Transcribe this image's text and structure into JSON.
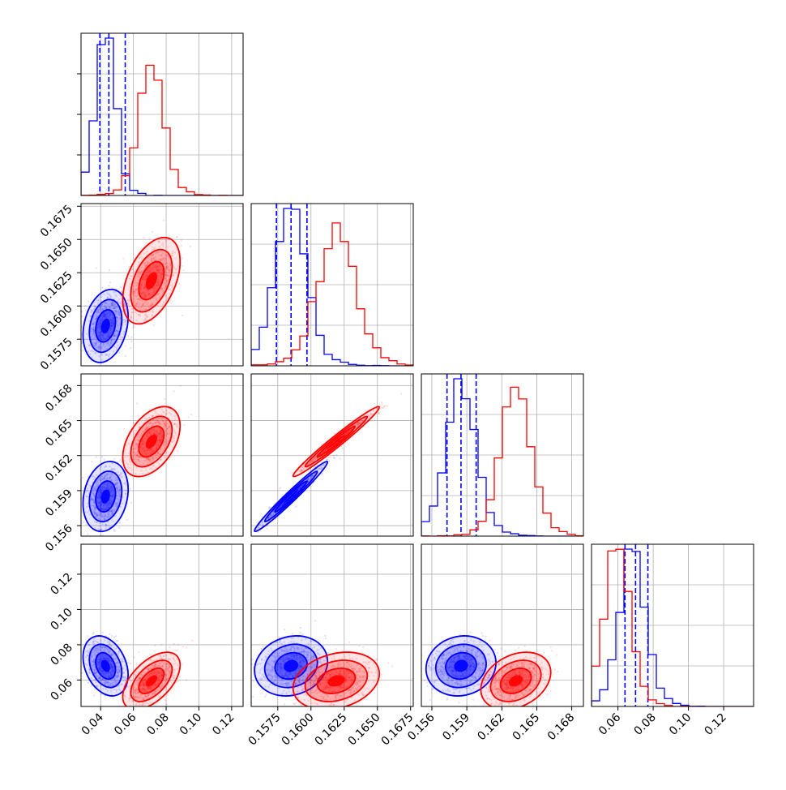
{
  "chart_data": {
    "type": "corner",
    "parameters": [
      {
        "ticks": [
          "0.04",
          "0.06",
          "0.08",
          "0.10",
          "0.12"
        ],
        "tick_values": [
          0.04,
          0.06,
          0.08,
          0.1,
          0.12
        ],
        "range": [
          0.028,
          0.127
        ]
      },
      {
        "ticks": [
          "0.1575",
          "0.1600",
          "0.1625",
          "0.1650",
          "0.1675"
        ],
        "tick_values": [
          0.1575,
          0.16,
          0.1625,
          0.165,
          0.1675
        ],
        "range": [
          0.1555,
          0.1677
        ]
      },
      {
        "ticks": [
          "0.156",
          "0.159",
          "0.162",
          "0.165",
          "0.168"
        ],
        "tick_values": [
          0.156,
          0.159,
          0.162,
          0.165,
          0.168
        ],
        "range": [
          0.1551,
          0.169
        ]
      },
      {
        "ticks": [
          "0.06",
          "0.08",
          "0.10",
          "0.12"
        ],
        "tick_values": [
          0.06,
          0.08,
          0.1,
          0.12
        ],
        "range": [
          0.045,
          0.137
        ]
      }
    ],
    "series": [
      {
        "color": "#0000ff",
        "centers": [
          0.043,
          0.1585,
          0.1585,
          0.068
        ],
        "sigmas": [
          0.0055,
          0.0011,
          0.0012,
          0.0068
        ],
        "correlations": {
          "1-0": 0.25,
          "2-0": 0.2,
          "2-1": 0.98,
          "3-0": -0.3,
          "3-1": 0.15,
          "3-2": 0.1
        },
        "quantiles": [
          [
            0.0395,
            0.045,
            0.055
          ],
          [
            0.1574,
            0.1585,
            0.1597
          ],
          [
            0.1573,
            0.1585,
            0.1598
          ],
          [
            0.064,
            0.07,
            0.077
          ]
        ]
      },
      {
        "color": "#ff0000",
        "centers": [
          0.071,
          0.1619,
          0.1632,
          0.0595
        ],
        "sigmas": [
          0.007,
          0.0013,
          0.0012,
          0.0065
        ],
        "correlations": {
          "1-0": 0.45,
          "2-0": 0.45,
          "2-1": 0.98,
          "3-0": 0.55,
          "3-1": 0.25,
          "3-2": 0.3
        },
        "quantiles": []
      }
    ],
    "histogram_bins": 20,
    "grid": true
  }
}
